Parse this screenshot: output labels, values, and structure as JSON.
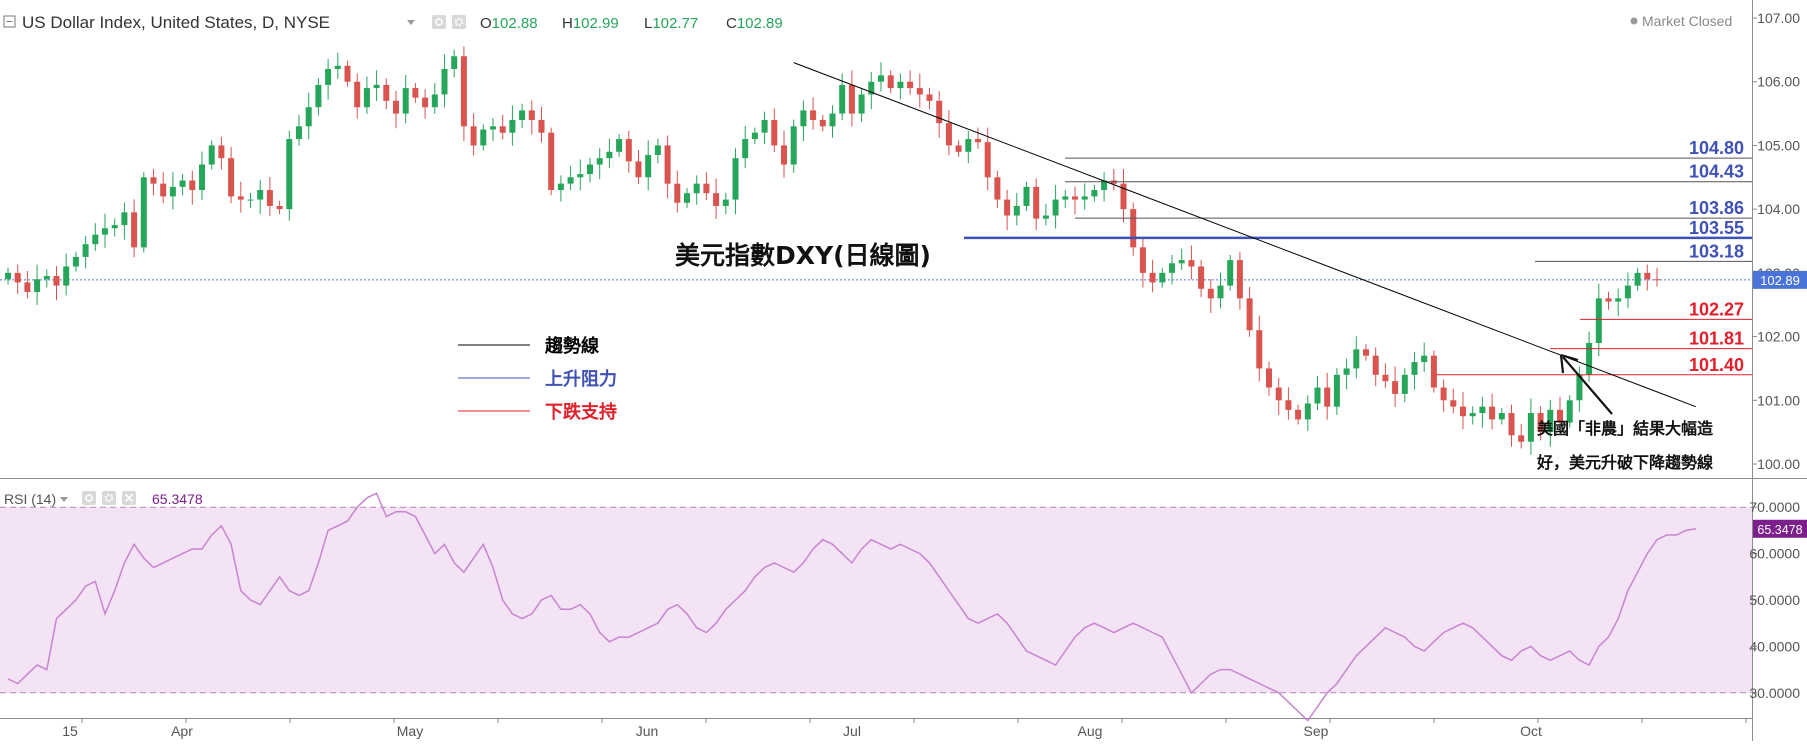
{
  "header": {
    "title": "US Dollar Index, United States, D, NYSE",
    "ohlc": [
      {
        "k": "O",
        "v": "102.88"
      },
      {
        "k": "H",
        "v": "102.99"
      },
      {
        "k": "L",
        "v": "102.77"
      },
      {
        "k": "C",
        "v": "102.89"
      }
    ],
    "market_status": "Market Closed"
  },
  "rsi_header": {
    "label": "RSI (14)",
    "value": "65.3478"
  },
  "annotations": {
    "chart_title": "美元指數DXY(日線圖)",
    "note_line1": "美國「非農」結果大幅造",
    "note_line2": "好，美元升破下降趨勢線"
  },
  "legend": [
    {
      "label": "趨勢線",
      "color": "#000000"
    },
    {
      "label": "上升阻力",
      "color": "#3f51b5"
    },
    {
      "label": "下跌支持",
      "color": "#e0202b"
    }
  ],
  "colors": {
    "up": "#26a65b",
    "down": "#d9534f",
    "resistance": "#3f51b5",
    "support": "#e0202b",
    "rsi": "#c785d0",
    "rsi_band": "#f3e3f4",
    "price_tag": "#4a73d9",
    "rsi_tag": "#7b1f8c"
  },
  "chart_data": [
    {
      "type": "candlestick",
      "title": "US Dollar Index, United States, D, NYSE",
      "ylim": [
        99.8,
        107.2
      ],
      "y_ticks": [
        "107.00",
        "106.00",
        "105.00",
        "104.00",
        "103.00",
        "102.00",
        "101.00",
        "100.00"
      ],
      "x_ticks": [
        "15",
        "Apr",
        "May",
        "Jun",
        "Jul",
        "Aug",
        "Sep",
        "Oct"
      ],
      "last_price": "102.89",
      "trendline": {
        "from": [
          81,
          106.3
        ],
        "to": [
          174,
          100.9
        ]
      },
      "resistance_levels": [
        {
          "label": "104.80",
          "value": 104.8
        },
        {
          "label": "104.43",
          "value": 104.43
        },
        {
          "label": "103.86",
          "value": 103.86
        },
        {
          "label": "103.55",
          "value": 103.55
        },
        {
          "label": "103.18",
          "value": 103.18
        }
      ],
      "support_levels": [
        {
          "label": "102.27",
          "value": 102.27
        },
        {
          "label": "101.81",
          "value": 101.81
        },
        {
          "label": "101.40",
          "value": 101.4
        }
      ],
      "closes": [
        103.0,
        102.85,
        102.7,
        102.9,
        102.95,
        102.8,
        103.1,
        103.25,
        103.45,
        103.6,
        103.7,
        103.75,
        103.95,
        103.4,
        104.5,
        104.4,
        104.2,
        104.35,
        104.45,
        104.3,
        104.7,
        105.0,
        104.8,
        104.2,
        104.15,
        104.15,
        104.3,
        104.05,
        104.0,
        105.1,
        105.3,
        105.6,
        105.95,
        106.2,
        106.25,
        106.0,
        105.6,
        105.9,
        105.95,
        105.7,
        105.5,
        105.9,
        105.75,
        105.6,
        105.8,
        106.2,
        106.4,
        105.3,
        105.0,
        105.25,
        105.3,
        105.2,
        105.4,
        105.55,
        105.4,
        105.2,
        104.3,
        104.4,
        104.5,
        104.55,
        104.7,
        104.8,
        104.9,
        105.1,
        104.75,
        104.5,
        104.85,
        105.0,
        104.4,
        104.1,
        104.25,
        104.4,
        104.25,
        104.05,
        104.15,
        104.8,
        105.1,
        105.2,
        105.4,
        105.0,
        104.7,
        105.3,
        105.55,
        105.4,
        105.3,
        105.5,
        105.95,
        105.5,
        105.8,
        106.0,
        106.1,
        105.9,
        106.0,
        105.9,
        105.8,
        105.7,
        105.35,
        105.0,
        104.9,
        105.1,
        105.05,
        104.5,
        104.15,
        103.9,
        104.05,
        104.35,
        103.85,
        103.9,
        104.15,
        104.2,
        104.15,
        104.2,
        104.3,
        104.45,
        104.4,
        104.0,
        103.4,
        103.0,
        102.85,
        103.0,
        103.15,
        103.2,
        103.1,
        102.75,
        102.6,
        102.8,
        103.2,
        102.6,
        102.1,
        101.5,
        101.2,
        101.0,
        100.85,
        100.7,
        100.95,
        101.2,
        100.9,
        101.4,
        101.5,
        101.8,
        101.7,
        101.4,
        101.3,
        101.1,
        101.4,
        101.6,
        101.7,
        101.2,
        101.0,
        100.9,
        100.75,
        100.8,
        100.9,
        100.7,
        100.8,
        100.45,
        100.35,
        100.8,
        100.5,
        100.85,
        100.65,
        101.0,
        101.4,
        101.9,
        102.6,
        102.55,
        102.6,
        102.8,
        103.0,
        102.9,
        102.89
      ]
    },
    {
      "type": "line",
      "title": "RSI (14)",
      "ylim": [
        25,
        75
      ],
      "y_ticks": [
        "70.0000",
        "60.0000",
        "50.0000",
        "40.0000",
        "30.0000"
      ],
      "bands": [
        30,
        70
      ],
      "last_value": "65.3478",
      "values": [
        33,
        32,
        34,
        36,
        35,
        46,
        48,
        50,
        53,
        54,
        47,
        52,
        58,
        62,
        59,
        57,
        58,
        59,
        60,
        61,
        61,
        64,
        66,
        62,
        52,
        50,
        49,
        52,
        55,
        52,
        51,
        52,
        58,
        65,
        66,
        67,
        70,
        72,
        73,
        68,
        69,
        69,
        68,
        64,
        60,
        62,
        58,
        56,
        59,
        62,
        57,
        50,
        47,
        46,
        47,
        50,
        51,
        48,
        48,
        49,
        47,
        43,
        41,
        42,
        42,
        43,
        44,
        45,
        48,
        49,
        47,
        44,
        43,
        45,
        48,
        50,
        52,
        55,
        57,
        58,
        57,
        56,
        58,
        61,
        63,
        62,
        60,
        58,
        61,
        63,
        62,
        61,
        62,
        61,
        60,
        58,
        55,
        52,
        49,
        46,
        45,
        46,
        47,
        45,
        42,
        39,
        38,
        37,
        36,
        39,
        42,
        44,
        45,
        44,
        43,
        44,
        45,
        44,
        43,
        42,
        38,
        34,
        30,
        32,
        34,
        35,
        35,
        34,
        33,
        32,
        31,
        30,
        28,
        26,
        24,
        27,
        30,
        32,
        35,
        38,
        40,
        42,
        44,
        43,
        42,
        40,
        39,
        41,
        43,
        44,
        45,
        44,
        42,
        40,
        38,
        37,
        39,
        40,
        38,
        37,
        38,
        39,
        37,
        36,
        40,
        42,
        46,
        52,
        56,
        60,
        63,
        64,
        64,
        65,
        65.35
      ]
    }
  ]
}
